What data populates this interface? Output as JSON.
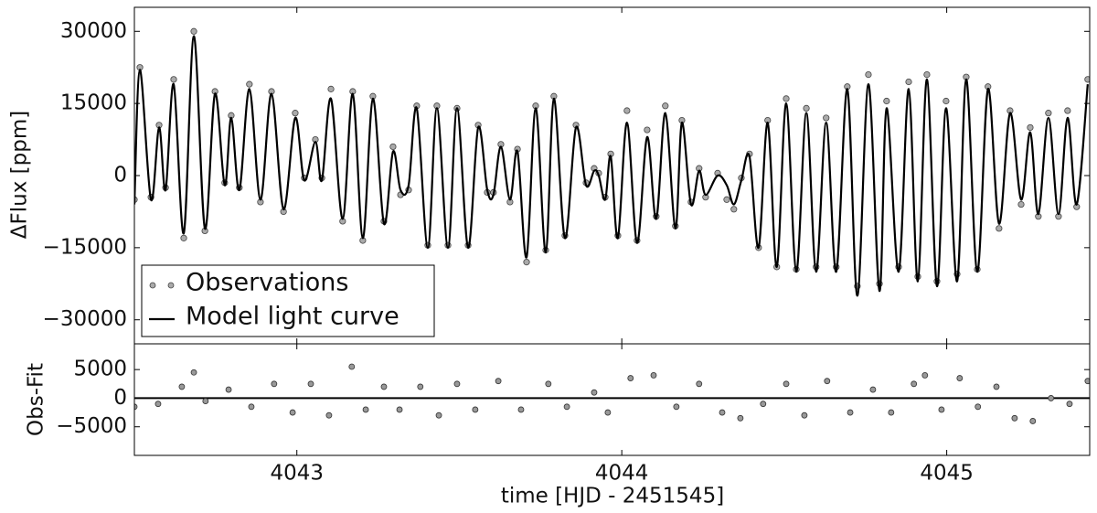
{
  "chart_data": [
    {
      "type": "line",
      "ylabel": "ΔFlux [ppm]",
      "xlim": [
        4042.5,
        4045.44
      ],
      "ylim": [
        -35000,
        35000
      ],
      "yticks": [
        {
          "value": -30000,
          "label": "−30000"
        },
        {
          "value": -15000,
          "label": "−15000"
        },
        0,
        15000,
        30000
      ],
      "legend": "lower left",
      "x": [
        4042.5,
        4042.517,
        4042.551,
        4042.576,
        4042.596,
        4042.621,
        4042.652,
        4042.683,
        4042.717,
        4042.748,
        4042.778,
        4042.798,
        4042.823,
        4042.854,
        4042.888,
        4042.922,
        4042.959,
        4042.995,
        4043.023,
        4043.057,
        4043.077,
        4043.105,
        4043.141,
        4043.172,
        4043.203,
        4043.234,
        4043.268,
        4043.296,
        4043.319,
        4043.344,
        4043.369,
        4043.403,
        4043.431,
        4043.465,
        4043.493,
        4043.527,
        4043.558,
        4043.586,
        4043.605,
        4043.628,
        4043.656,
        4043.679,
        4043.707,
        4043.735,
        4043.766,
        4043.791,
        4043.825,
        4043.859,
        4043.89,
        4043.915,
        4043.929,
        4043.949,
        4043.966,
        4043.988,
        4044.016,
        4044.047,
        4044.078,
        4044.106,
        4044.134,
        4044.165,
        4044.185,
        4044.213,
        4044.238,
        4044.258,
        4044.295,
        4044.323,
        4044.345,
        4044.368,
        4044.393,
        4044.421,
        4044.449,
        4044.477,
        4044.506,
        4044.537,
        4044.568,
        4044.598,
        4044.629,
        4044.66,
        4044.694,
        4044.725,
        4044.759,
        4044.793,
        4044.815,
        4044.852,
        4044.883,
        4044.911,
        4044.939,
        4044.97,
        4044.998,
        4045.032,
        4045.06,
        4045.094,
        4045.127,
        4045.161,
        4045.195,
        4045.229,
        4045.257,
        4045.282,
        4045.313,
        4045.344,
        4045.372,
        4045.4,
        4045.434
      ],
      "series": [
        {
          "name": "Observations",
          "style": "markers",
          "color": "#aaaaaa",
          "values": [
            -5000,
            22500,
            -4500,
            10500,
            -2500,
            20000,
            -13000,
            30000,
            -11500,
            17500,
            -1500,
            12500,
            -2500,
            19000,
            -5500,
            17500,
            -7500,
            13000,
            -500,
            7500,
            -500,
            18000,
            -9500,
            17500,
            -13500,
            16500,
            -9500,
            6000,
            -4000,
            -3000,
            14500,
            -14500,
            14500,
            -14500,
            14000,
            -14500,
            10500,
            -3500,
            -3500,
            6500,
            -5500,
            5500,
            -18000,
            14500,
            -15500,
            16500,
            -12500,
            10500,
            -1500,
            1500,
            500,
            -4500,
            4500,
            -12500,
            13500,
            -13500,
            9500,
            -8500,
            14500,
            -10500,
            11500,
            -5500,
            1500,
            -4500,
            500,
            -5000,
            -7000,
            -500,
            4500,
            -15000,
            11500,
            -19000,
            16000,
            -19500,
            14000,
            -19000,
            12000,
            -19000,
            18500,
            -23000,
            21000,
            -22500,
            15500,
            -19000,
            19500,
            -21000,
            21000,
            -22000,
            15500,
            -20500,
            20500,
            -19500,
            18500,
            -11000,
            13500,
            -6000,
            10000,
            -8500,
            13000,
            -8500,
            13500,
            -6500,
            20000
          ]
        },
        {
          "name": "Model light curve",
          "style": "line",
          "color": "#000000",
          "values": [
            -6000,
            22000,
            -5000,
            10000,
            -3000,
            19000,
            -12000,
            29000,
            -11000,
            17000,
            -2000,
            12000,
            -3000,
            18000,
            -5000,
            17000,
            -7000,
            12000,
            -1000,
            7000,
            -1000,
            16000,
            -9000,
            17000,
            -13000,
            16000,
            -10000,
            5000,
            -3000,
            -2000,
            14000,
            -15000,
            14000,
            -15000,
            14000,
            -15000,
            10000,
            -3000,
            -4000,
            6000,
            -5000,
            5000,
            -17000,
            14000,
            -16000,
            16000,
            -13000,
            10000,
            -2000,
            1000,
            0,
            -5000,
            4000,
            -13000,
            11000,
            -14000,
            8000,
            -9000,
            13000,
            -11000,
            11000,
            -6000,
            1000,
            -4000,
            0,
            -2000,
            -6000,
            -1000,
            4000,
            -15000,
            11000,
            -19000,
            15000,
            -20000,
            13000,
            -20000,
            11000,
            -20000,
            18000,
            -25000,
            19000,
            -24000,
            14000,
            -20000,
            18000,
            -22000,
            20000,
            -23000,
            14000,
            -22000,
            20000,
            -20000,
            18000,
            -10000,
            13000,
            -5000,
            9000,
            -8000,
            12000,
            -8000,
            12000,
            -6000,
            19000
          ]
        }
      ]
    },
    {
      "type": "scatter",
      "ylabel": "Obs-Fit",
      "xlabel": "time [HJD - 2451545]",
      "xlim": [
        4042.5,
        4045.44
      ],
      "ylim": [
        -10000,
        9500
      ],
      "yticks": [
        {
          "value": -5000,
          "label": "−5000"
        },
        0,
        5000
      ],
      "xticks": [
        4043,
        4044,
        4045
      ],
      "x": [
        4042.5,
        4042.573,
        4042.646,
        4042.683,
        4042.719,
        4042.79,
        4042.86,
        4042.93,
        4042.987,
        4043.043,
        4043.099,
        4043.169,
        4043.212,
        4043.268,
        4043.316,
        4043.38,
        4043.437,
        4043.493,
        4043.549,
        4043.62,
        4043.69,
        4043.774,
        4043.831,
        4043.915,
        4043.957,
        4044.027,
        4044.098,
        4044.168,
        4044.238,
        4044.309,
        4044.365,
        4044.435,
        4044.506,
        4044.562,
        4044.632,
        4044.703,
        4044.773,
        4044.829,
        4044.899,
        4044.933,
        4044.984,
        4045.04,
        4045.096,
        4045.153,
        4045.209,
        4045.265,
        4045.321,
        4045.378,
        4045.434
      ],
      "color": "#999999",
      "values": [
        -1500,
        -1000,
        2000,
        4500,
        -500,
        1500,
        -1500,
        2500,
        -2500,
        2500,
        -3000,
        5500,
        -2000,
        2000,
        -2000,
        2000,
        -3000,
        2500,
        -2000,
        3000,
        -2000,
        2500,
        -1500,
        1000,
        -2500,
        3500,
        4000,
        -1500,
        2500,
        -2500,
        -3500,
        -1000,
        2500,
        -3000,
        3000,
        -2500,
        1500,
        -2500,
        2500,
        4000,
        -2000,
        3500,
        -1500,
        2000,
        -3500,
        -4000,
        0,
        -1000,
        3000
      ]
    }
  ]
}
